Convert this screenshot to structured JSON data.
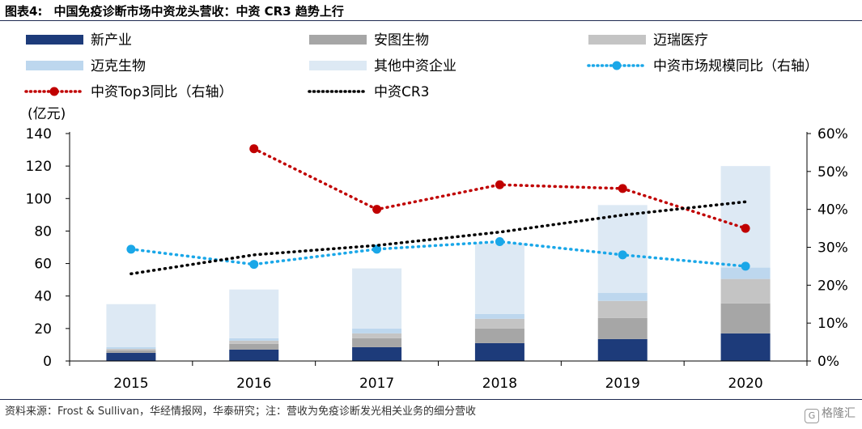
{
  "figure": {
    "number": "图表4:",
    "title": "中国免疫诊断市场中资龙头营收：中资 CR3 趋势上行",
    "source": "资料来源：Frost & Sullivan，华经情报网，华泰研究；注：营收为免疫诊断发光相关业务的细分营收",
    "watermark_icon": "G",
    "watermark": "格隆汇"
  },
  "colors": {
    "xinchanye": "#1d3b7a",
    "antu": "#a6a6a6",
    "mairui": "#c4c4c4",
    "maike": "#bdd7ee",
    "other": "#dde9f4",
    "market_yoy": "#1aa7e8",
    "top3_yoy": "#c00000",
    "cr3": "#000000",
    "title_rule": "#1f2a52"
  },
  "chart_data": {
    "type": "bar",
    "stacked": true,
    "categories": [
      "2015",
      "2016",
      "2017",
      "2018",
      "2019",
      "2020"
    ],
    "y_unit_label": "(亿元)",
    "ylim": [
      0,
      140
    ],
    "yticks": [
      "0",
      "20",
      "40",
      "60",
      "80",
      "100",
      "120",
      "140"
    ],
    "y2lim": [
      0,
      60
    ],
    "y2ticks": [
      "0%",
      "10%",
      "20%",
      "30%",
      "40%",
      "50%",
      "60%"
    ],
    "grid": false,
    "legend_position": "top",
    "series": [
      {
        "name": "新产业",
        "kind": "bar",
        "color_key": "xinchanye",
        "values": [
          5,
          7,
          8.5,
          11,
          13.5,
          17
        ]
      },
      {
        "name": "安图生物",
        "kind": "bar",
        "color_key": "antu",
        "values": [
          1.5,
          3.5,
          5.5,
          9,
          13,
          18.5
        ]
      },
      {
        "name": "迈瑞医疗",
        "kind": "bar",
        "color_key": "mairui",
        "values": [
          1,
          2,
          3,
          6,
          10.5,
          15
        ]
      },
      {
        "name": "迈克生物",
        "kind": "bar",
        "color_key": "maike",
        "values": [
          1,
          1.5,
          3,
          3,
          5,
          7
        ]
      },
      {
        "name": "其他中资企业",
        "kind": "bar",
        "color_key": "other",
        "values": [
          26.5,
          30,
          37,
          43.5,
          54,
          62.5
        ]
      },
      {
        "name": "中资市场规模同比（右轴）",
        "kind": "line",
        "axis": "right",
        "color_key": "market_yoy",
        "marker": true,
        "values": [
          29.5,
          25.5,
          29.5,
          31.5,
          28,
          25
        ]
      },
      {
        "name": "中资Top3同比（右轴）",
        "kind": "line",
        "axis": "right",
        "color_key": "top3_yoy",
        "marker": true,
        "values": [
          null,
          56,
          40,
          46.5,
          45.5,
          35
        ]
      },
      {
        "name": "中资CR3",
        "kind": "line",
        "axis": "right",
        "color_key": "cr3",
        "marker": false,
        "values": [
          23,
          28,
          30.5,
          34,
          38.5,
          42
        ]
      }
    ]
  }
}
